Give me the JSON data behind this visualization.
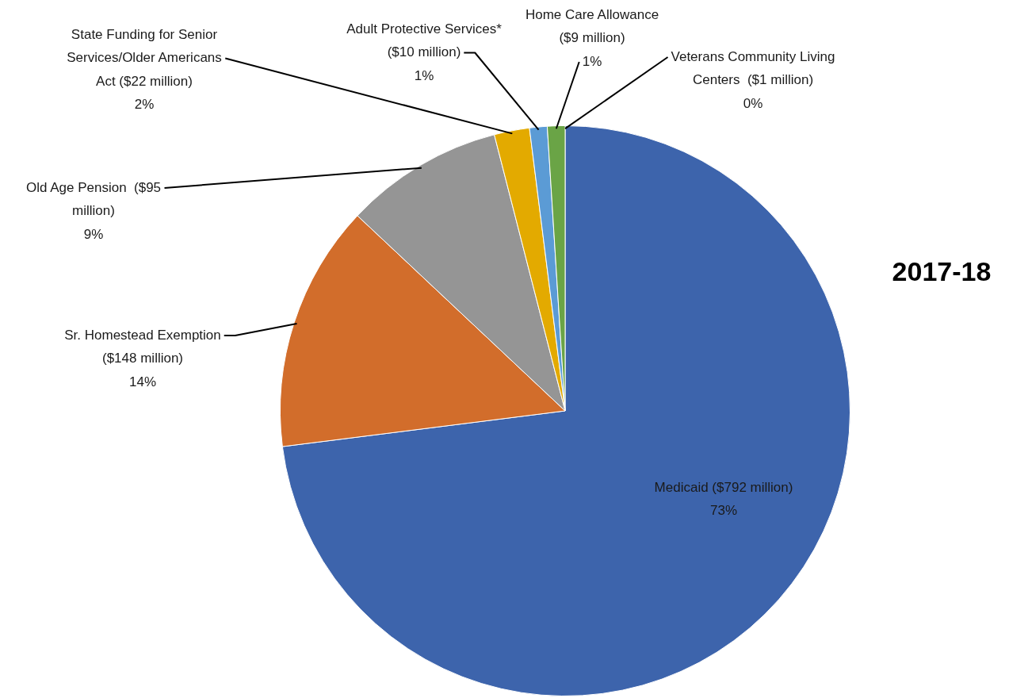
{
  "chart_data": {
    "type": "pie",
    "title": "2017-18",
    "categories": [
      "Medicaid ($792 million)",
      "Sr. Homestead Exemption ($148 million)",
      "Old Age Pension  ($95 million)",
      "State Funding for Senior Services/Older Americans Act ($22 million)",
      "Adult Protective Services* ($10 million)",
      "Home Care Allowance ($9 million)",
      "Veterans Community Living Centers  ($1 million)"
    ],
    "values": [
      73,
      14,
      9,
      2,
      1,
      1,
      0
    ],
    "value_labels": [
      "73%",
      "14%",
      "9%",
      "2%",
      "1%",
      "1%",
      "0%"
    ],
    "colors": [
      "#3d64ac",
      "#d26d2b",
      "#959595",
      "#e3aa00",
      "#5b9bd5",
      "#6aa446",
      "#264478"
    ],
    "legend": false
  }
}
